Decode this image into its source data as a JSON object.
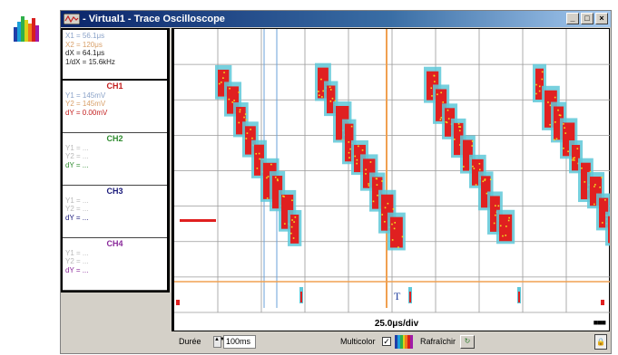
{
  "window": {
    "title": "- Virtual1 - Trace Oscilloscope",
    "minimize": "_",
    "maximize": "□",
    "close": "×"
  },
  "cursors": {
    "x1": "X1 = 56.1μs",
    "x2": "X2 = 120μs",
    "dx": "dX = 64.1μs",
    "inv_dx": "1/dX = 15.6kHz"
  },
  "channels": [
    {
      "name": "CH1",
      "y1": "Y1 = 145mV",
      "y2": "Y2 = 145mV",
      "dy": "dY = 0.00mV",
      "color": "#c42020"
    },
    {
      "name": "CH2",
      "y1": "Y1 = ...",
      "y2": "Y2 = ...",
      "dy": "dY = ...",
      "color": "#2e8b2e"
    },
    {
      "name": "CH3",
      "y1": "Y1 = ...",
      "y2": "Y2 = ...",
      "dy": "dY = ...",
      "color": "#1a1a7a"
    },
    {
      "name": "CH4",
      "y1": "Y1 = ...",
      "y2": "Y2 = ...",
      "dy": "dY = ...",
      "color": "#8a2a9a"
    }
  ],
  "screen": {
    "timebase": "25.0μs/div",
    "trigger_marker": "T",
    "indicator": "■■■",
    "grid_color": "#9a9a9a",
    "trace_color": "#e02020",
    "halo_color": "#5fc8d8",
    "spark_color": "#f0e020",
    "trigger_line_color": "#f0a050",
    "cursor_line_color": "#6aa0d8"
  },
  "bottom": {
    "duration_label": "Durée",
    "duration_value": "100ms",
    "spin_icon": "▲▼",
    "multicolor_label": "Multicolor",
    "multicolor_checked": "✓",
    "refresh_label": "Rafraîchir",
    "refresh_icon": "↻",
    "lock_icon": "🔒"
  }
}
